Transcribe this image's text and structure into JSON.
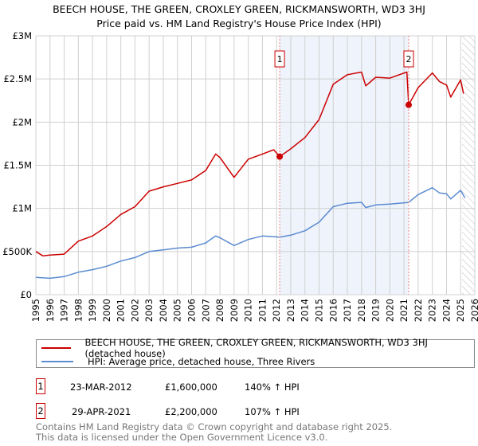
{
  "title": {
    "line1": "BEECH HOUSE, THE GREEN, CROXLEY GREEN, RICKMANSWORTH, WD3 3HJ",
    "line2": "Price paid vs. HM Land Registry's House Price Index (HPI)"
  },
  "colors": {
    "property": "#cc0000",
    "hpi": "#5b8bd0",
    "shade": "#eef3fc",
    "marker_box": "#cc0000"
  },
  "chart_data": {
    "type": "line",
    "title": "Price paid vs. HM Land Registry's House Price Index (HPI)",
    "xlabel": "",
    "ylabel": "",
    "xlim": [
      1995,
      2026
    ],
    "ylim": [
      0,
      3000000
    ],
    "x_ticks": [
      1995,
      1996,
      1997,
      1998,
      1999,
      2000,
      2001,
      2002,
      2003,
      2004,
      2005,
      2006,
      2007,
      2008,
      2009,
      2010,
      2011,
      2012,
      2013,
      2014,
      2015,
      2016,
      2017,
      2018,
      2019,
      2020,
      2021,
      2022,
      2023,
      2024,
      2025,
      2026
    ],
    "y_ticks": [
      {
        "value": 0,
        "label": "£0"
      },
      {
        "value": 500000,
        "label": "£500K"
      },
      {
        "value": 1000000,
        "label": "£1M"
      },
      {
        "value": 1500000,
        "label": "£1.5M"
      },
      {
        "value": 2000000,
        "label": "£2M"
      },
      {
        "value": 2500000,
        "label": "£2.5M"
      },
      {
        "value": 3000000,
        "label": "£3M"
      }
    ],
    "grid": true,
    "shaded_range": [
      2012.22,
      2021.33
    ],
    "forecast_hatch_from": 2025.1,
    "series": [
      {
        "name": "BEECH HOUSE, THE GREEN, CROXLEY GREEN, RICKMANSWORTH, WD3 3HJ (detached house)",
        "x": [
          1995,
          1995.5,
          1996,
          1997,
          1998,
          1999,
          2000,
          2001,
          2002,
          2003,
          2004,
          2005,
          2006,
          2007,
          2007.7,
          2008,
          2009,
          2010,
          2011,
          2011.8,
          2012.22,
          2013,
          2014,
          2015,
          2016,
          2017,
          2018,
          2018.3,
          2019,
          2020,
          2021.2,
          2021.33,
          2022,
          2023,
          2023.5,
          2024,
          2024.3,
          2025,
          2025.2
        ],
        "values": [
          500000,
          450000,
          460000,
          470000,
          620000,
          680000,
          790000,
          930000,
          1020000,
          1200000,
          1250000,
          1290000,
          1330000,
          1440000,
          1630000,
          1590000,
          1360000,
          1570000,
          1630000,
          1680000,
          1600000,
          1690000,
          1820000,
          2030000,
          2440000,
          2550000,
          2580000,
          2420000,
          2520000,
          2510000,
          2580000,
          2200000,
          2400000,
          2570000,
          2470000,
          2430000,
          2290000,
          2490000,
          2330000
        ]
      },
      {
        "name": "HPI: Average price, detached house, Three Rivers",
        "x": [
          1995,
          1996,
          1997,
          1998,
          1999,
          2000,
          2001,
          2002,
          2003,
          2004,
          2005,
          2006,
          2007,
          2007.7,
          2008,
          2009,
          2010,
          2011,
          2012.22,
          2013,
          2014,
          2015,
          2016,
          2017,
          2018,
          2018.3,
          2019,
          2020,
          2021.33,
          2022,
          2023,
          2023.5,
          2024,
          2024.3,
          2025,
          2025.3
        ],
        "values": [
          200000,
          190000,
          210000,
          260000,
          290000,
          330000,
          390000,
          430000,
          500000,
          520000,
          540000,
          550000,
          600000,
          680000,
          660000,
          570000,
          640000,
          680000,
          667000,
          690000,
          740000,
          840000,
          1020000,
          1060000,
          1070000,
          1010000,
          1040000,
          1050000,
          1070000,
          1160000,
          1240000,
          1180000,
          1170000,
          1110000,
          1210000,
          1120000
        ]
      }
    ],
    "markers": [
      {
        "label": "1",
        "x": 2012.22,
        "value": 1600000
      },
      {
        "label": "2",
        "x": 2021.33,
        "value": 2200000
      }
    ]
  },
  "legend": {
    "property": "BEECH HOUSE, THE GREEN, CROXLEY GREEN, RICKMANSWORTH, WD3 3HJ (detached house)",
    "hpi": "HPI: Average price, detached house, Three Rivers"
  },
  "transactions": [
    {
      "num": "1",
      "date": "23-MAR-2012",
      "price": "£1,600,000",
      "hpi": "140% ↑ HPI"
    },
    {
      "num": "2",
      "date": "29-APR-2021",
      "price": "£2,200,000",
      "hpi": "107% ↑ HPI"
    }
  ],
  "footer": {
    "line1": "Contains HM Land Registry data © Crown copyright and database right 2025.",
    "line2": "This data is licensed under the Open Government Licence v3.0."
  }
}
